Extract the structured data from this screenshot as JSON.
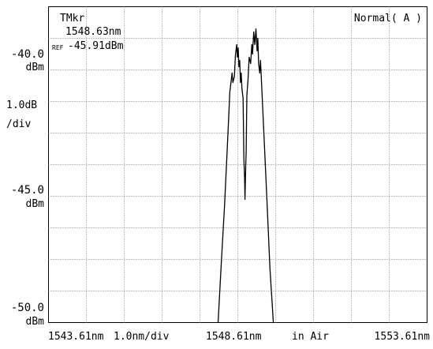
{
  "header": {
    "marker_title": "TMkr",
    "marker_wavelength": "1548.63nm",
    "ref_label": "REF",
    "ref_level": "-45.91dBm",
    "mode": "Normal( A )"
  },
  "left_scale": {
    "top_value": "-40.0",
    "top_unit": "dBm",
    "scale_value": "1.0dB",
    "scale_unit": "/div",
    "mid_value": "-45.0",
    "mid_unit": "dBm",
    "bottom_value": "-50.0",
    "bottom_unit": "dBm"
  },
  "bottom_bar": {
    "start": "1543.61nm",
    "span_per_div": "1.0nm/div",
    "center": "1548.61nm",
    "medium": "in Air",
    "stop": "1553.61nm"
  },
  "chart_data": {
    "type": "line",
    "xlabel": "",
    "ylabel": "",
    "xlim": [
      1543.61,
      1553.61
    ],
    "ylim": [
      -50.0,
      -40.0
    ],
    "x_divisions": 10,
    "y_divisions": 10,
    "grid": true,
    "colors": {
      "trace": "#000000",
      "grid": "#7f7f7f",
      "frame": "#000000"
    },
    "series": [
      {
        "x": [
          1548.08,
          1548.17,
          1548.26,
          1548.34,
          1548.4,
          1548.44,
          1548.46,
          1548.48,
          1548.52,
          1548.55,
          1548.58,
          1548.6,
          1548.62,
          1548.64,
          1548.66,
          1548.68,
          1548.7,
          1548.72,
          1548.75,
          1548.77,
          1548.79,
          1548.8,
          1548.82,
          1548.83,
          1548.85,
          1548.88,
          1548.91,
          1548.95,
          1548.98,
          1549.0,
          1549.03,
          1549.06,
          1549.09,
          1549.12,
          1549.14,
          1549.16,
          1549.19,
          1549.21,
          1549.26,
          1549.36,
          1549.46,
          1549.56
        ],
        "y": [
          -50.2,
          -48.2,
          -46.3,
          -44.3,
          -42.7,
          -42.3,
          -42.1,
          -42.4,
          -42.2,
          -41.5,
          -41.2,
          -41.6,
          -41.3,
          -41.9,
          -41.7,
          -42.4,
          -42.1,
          -42.6,
          -42.9,
          -44.8,
          -45.4,
          -46.1,
          -45.0,
          -44.6,
          -42.8,
          -42.3,
          -41.6,
          -41.8,
          -41.2,
          -41.5,
          -40.8,
          -41.2,
          -40.7,
          -41.4,
          -41.0,
          -41.8,
          -42.1,
          -41.7,
          -43.0,
          -45.6,
          -48.3,
          -50.2
        ]
      }
    ]
  }
}
